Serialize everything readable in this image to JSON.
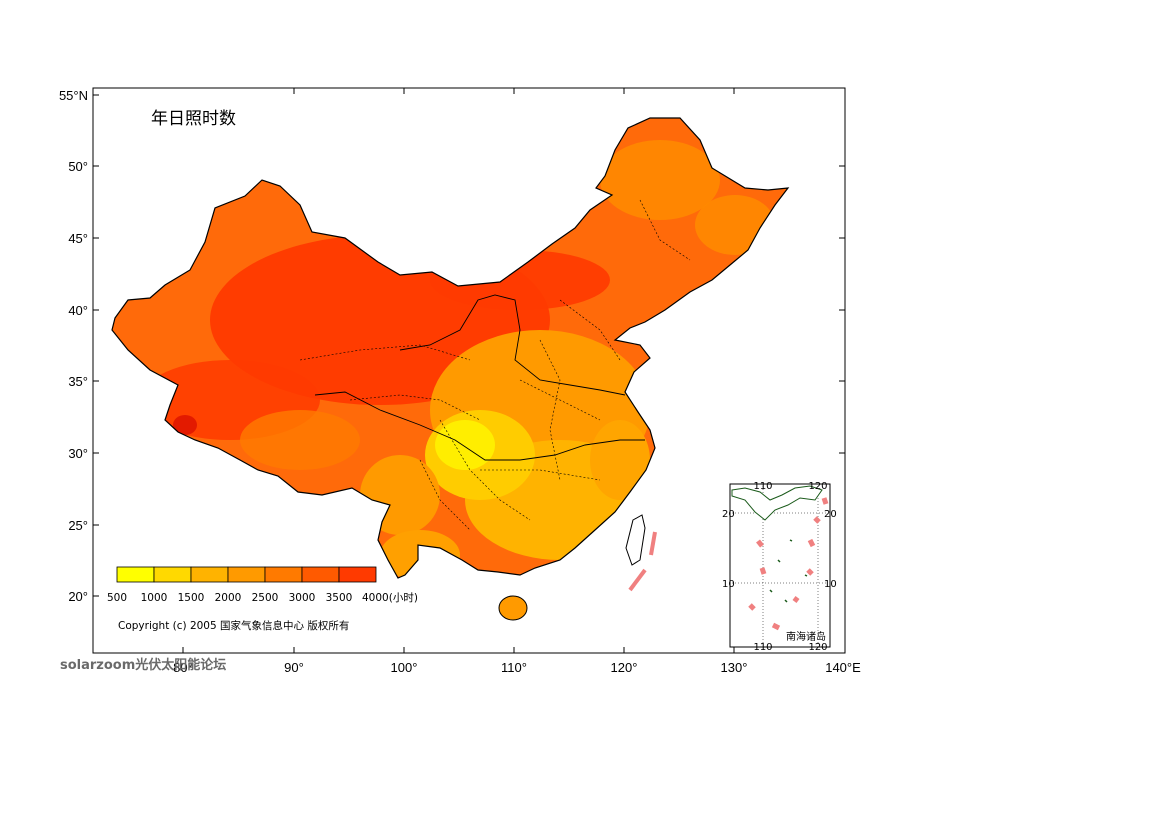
{
  "map": {
    "title": "年日照时数",
    "copyright": "Copyright (c) 2005 国家气象信息中心 版权所有",
    "lat_labels": [
      "55°N",
      "50°",
      "45°",
      "40°",
      "35°",
      "30°",
      "25°",
      "20°"
    ],
    "lon_labels": [
      "80°",
      "90°",
      "100°",
      "110°",
      "120°",
      "130°",
      "140°E"
    ],
    "legend": {
      "ticks": [
        "500",
        "1000",
        "1500",
        "2000",
        "2500",
        "3000",
        "3500",
        "4000(小时)"
      ],
      "colors": [
        "#ffff00",
        "#ffd900",
        "#ffb300",
        "#ff9a00",
        "#ff7a00",
        "#ff5a00",
        "#ff3a00",
        "#ff1a00"
      ]
    },
    "inset": {
      "caption": "南海诸岛",
      "top_ticks": [
        "110",
        "120"
      ],
      "bottom_ticks": [
        "110",
        "120"
      ],
      "left_ticks": [
        "20",
        "10"
      ],
      "right_ticks": [
        "20",
        "10"
      ]
    },
    "boundary_color": "#000000",
    "dash_color": "#f08080"
  },
  "watermark": {
    "text": "solarzoom光伏太阳能论坛"
  }
}
